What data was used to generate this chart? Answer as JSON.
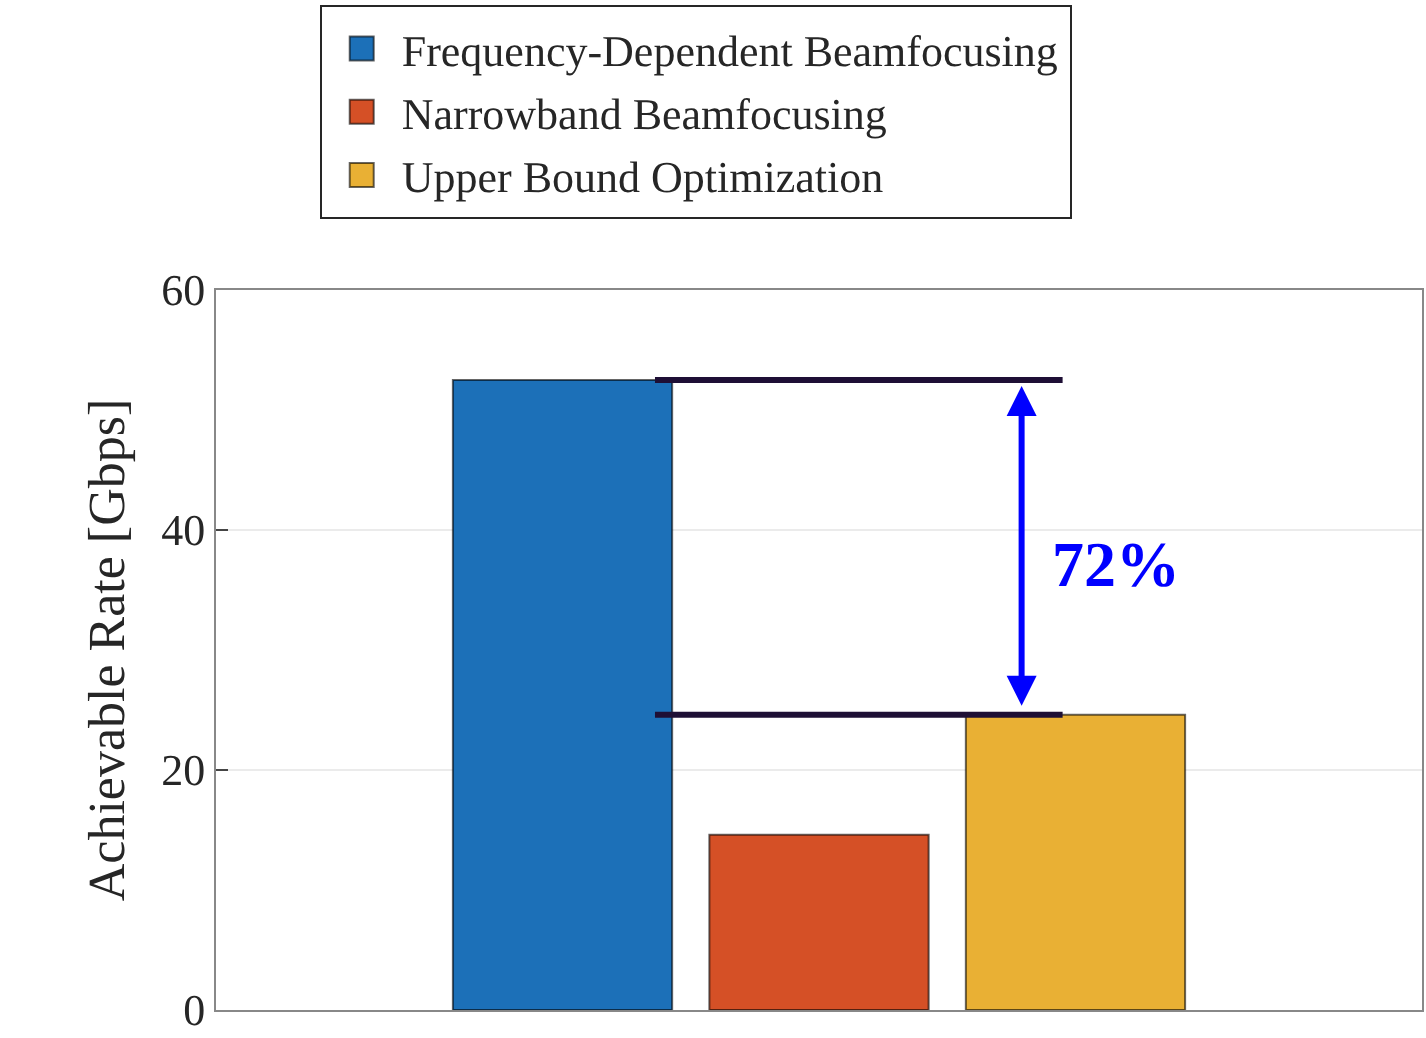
{
  "chart_data": {
    "type": "bar",
    "ylabel": "Achievable Rate [Gbps]",
    "categories": [
      null
    ],
    "series": [
      {
        "name": "Frequency-Dependent Beamfocusing",
        "color": "#1c70b8",
        "values": [
          52.5
        ]
      },
      {
        "name": "Narrowband Beamfocusing",
        "color": "#d55026",
        "values": [
          14.6
        ]
      },
      {
        "name": "Upper Bound Optimization",
        "color": "#e9b034",
        "values": [
          24.6
        ]
      }
    ],
    "ylim": [
      0,
      60
    ],
    "yticks": [
      0,
      20,
      40,
      60
    ],
    "grid": "y",
    "legend": "top",
    "ref_lines": [
      {
        "axis": "y",
        "value": 52.5,
        "color": "#1e0f35"
      },
      {
        "axis": "y",
        "value": 24.6,
        "color": "#1e0f35"
      }
    ],
    "annotations": [
      "72%"
    ]
  }
}
